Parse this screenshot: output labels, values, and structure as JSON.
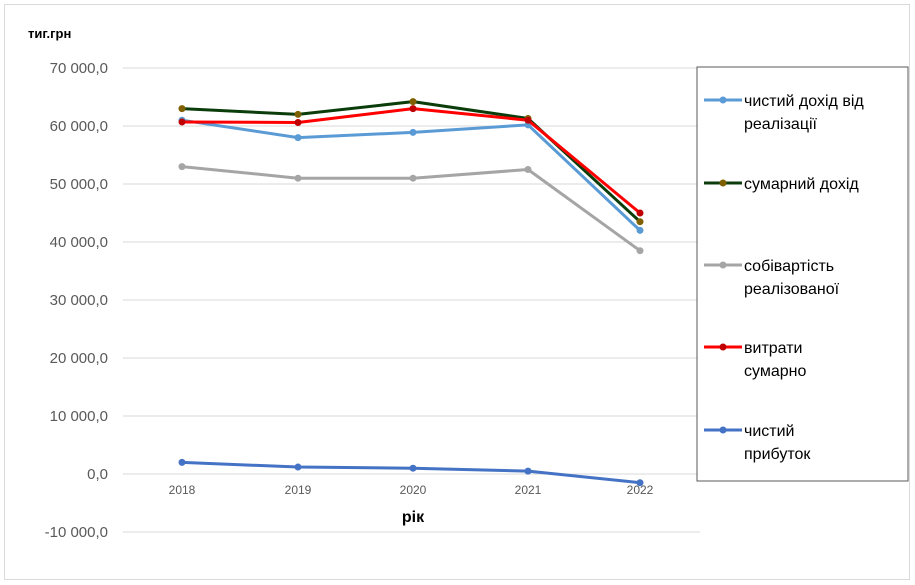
{
  "chart_data": {
    "type": "line",
    "ylabel": "тиг.грн",
    "xlabel": "рік",
    "categories": [
      "2018",
      "2019",
      "2020",
      "2021",
      "2022"
    ],
    "ylim": [
      -10000,
      70000
    ],
    "yticks": [
      70000,
      60000,
      50000,
      40000,
      30000,
      20000,
      10000,
      0,
      -10000
    ],
    "ytick_labels": [
      "70 000,0",
      "60 000,0",
      "50 000,0",
      "40 000,0",
      "30 000,0",
      "20 000,0",
      "10 000,0",
      "0,0",
      "-10 000,0"
    ],
    "grid": true,
    "legend_position": "right",
    "series": [
      {
        "name": "чистий дохід від реалізації",
        "legend_lines": [
          "чистий дохід від",
          "реалізації"
        ],
        "color": "#5b9bd5",
        "marker_color": "#5b9bd5",
        "values": [
          61000,
          58000,
          58900,
          60200,
          42000
        ]
      },
      {
        "name": "сумарний дохід",
        "legend_lines": [
          "сумарний дохід"
        ],
        "color": "#0b3d0b",
        "marker_color": "#7f6000",
        "values": [
          63000,
          62000,
          64200,
          61300,
          43500
        ]
      },
      {
        "name": "собівартість реалізованої",
        "legend_lines": [
          "собівартість",
          "реалізованої"
        ],
        "color": "#a5a5a5",
        "marker_color": "#a5a5a5",
        "values": [
          53000,
          51000,
          51000,
          52500,
          38500
        ]
      },
      {
        "name": "витрати сумарно",
        "legend_lines": [
          "витрати",
          "сумарно"
        ],
        "color": "#ff0000",
        "marker_color": "#c00000",
        "values": [
          60700,
          60600,
          63000,
          61000,
          45000
        ]
      },
      {
        "name": "чистий прибуток",
        "legend_lines": [
          "чистий",
          "прибуток"
        ],
        "color": "#4472c4",
        "marker_color": "#4472c4",
        "values": [
          2000,
          1200,
          1000,
          500,
          -1500
        ]
      }
    ]
  }
}
